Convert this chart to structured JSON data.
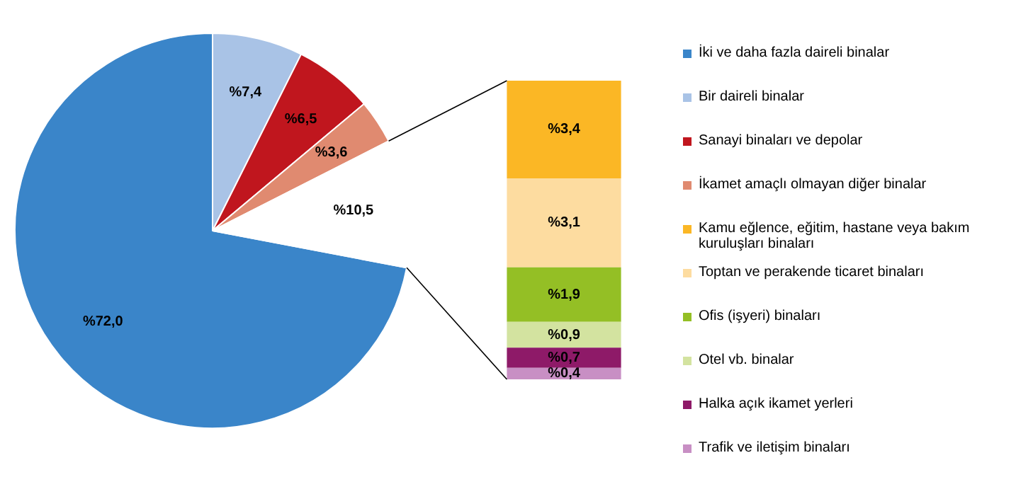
{
  "chart_data": [
    {
      "type": "pie",
      "categories": [
        "İki ve daha fazla daireli binalar",
        "Bir daireli binalar",
        "Sanayi binaları ve depolar",
        "İkamet amaçlı olmayan diğer binalar",
        null
      ],
      "values": [
        72.0,
        7.4,
        6.5,
        3.6,
        10.5
      ],
      "colors": [
        "#3a85c9",
        "#a9c3e6",
        "#c0161e",
        "#e08a70",
        "#ffffff"
      ],
      "value_labels": [
        "%72,0",
        "%7,4",
        "%6,5",
        "%3,6",
        "%10,5"
      ],
      "legend": "right"
    },
    {
      "type": "bar",
      "stacked": true,
      "categories": [
        null
      ],
      "legend": "right",
      "series": [
        {
          "name": "Trafik ve iletişim binaları",
          "color": "#c88fc4",
          "values": [
            0.4
          ],
          "value_labels": [
            "%0,4"
          ]
        },
        {
          "name": "Halka açık ikamet yerleri",
          "color": "#8e1a68",
          "values": [
            0.7
          ],
          "value_labels": [
            "%0,7"
          ]
        },
        {
          "name": "Otel vb. binalar",
          "color": "#d3e3a0",
          "values": [
            0.9
          ],
          "value_labels": [
            "%0,9"
          ]
        },
        {
          "name": "Ofis (işyeri) binaları",
          "color": "#94bf25",
          "values": [
            1.9
          ],
          "value_labels": [
            "%1,9"
          ]
        },
        {
          "name": "Toptan ve perakende ticaret binaları",
          "color": "#fddca0",
          "values": [
            3.1
          ],
          "value_labels": [
            "%3,1"
          ]
        },
        {
          "name": "Kamu eğlence, eğitim, hastane veya bakım kuruluşları binaları",
          "color": "#fbb725",
          "values": [
            3.4
          ],
          "value_labels": [
            "%3,4"
          ]
        }
      ]
    }
  ]
}
